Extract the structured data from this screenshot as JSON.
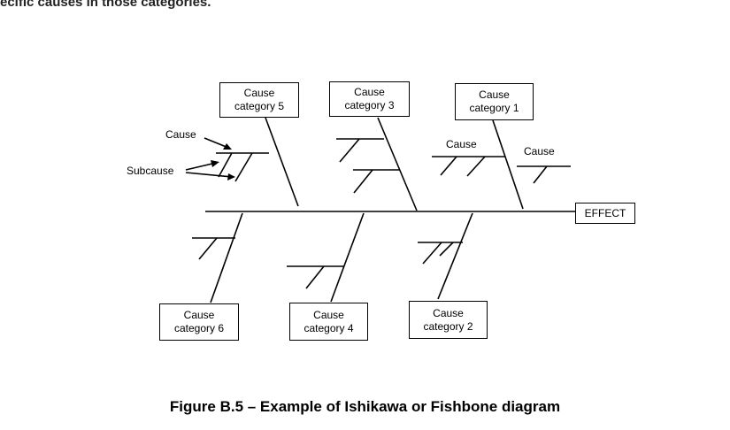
{
  "intro_text": "ecific causes in those categories.",
  "categories": {
    "cat5": [
      "Cause",
      "category 5"
    ],
    "cat3": [
      "Cause",
      "category 3"
    ],
    "cat1": [
      "Cause",
      "category 1"
    ],
    "cat6": [
      "Cause",
      "category 6"
    ],
    "cat4": [
      "Cause",
      "category 4"
    ],
    "cat2": [
      "Cause",
      "category 2"
    ]
  },
  "effect": "EFFECT",
  "labels": {
    "cause_left": "Cause",
    "subcause_left": "Subcause",
    "cause_cat1_a": "Cause",
    "cause_cat1_b": "Cause"
  },
  "caption": "Figure B.5 – Example of Ishikawa or Fishbone diagram"
}
